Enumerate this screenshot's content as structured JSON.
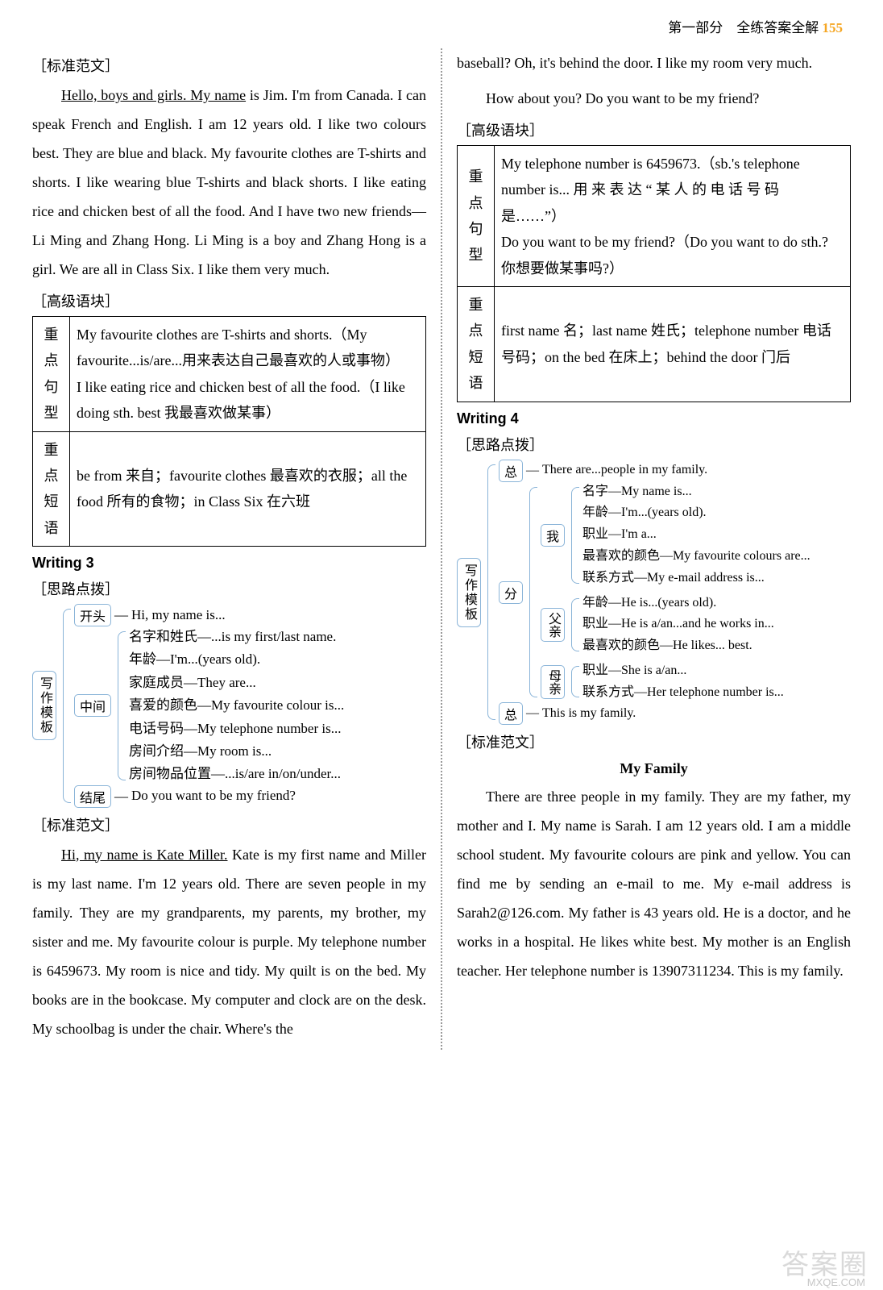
{
  "header": {
    "part": "第一部分　全练答案全解",
    "page": "155"
  },
  "left": {
    "label_model": "［标准范文］",
    "essay1_u": "Hello, boys and girls. My name",
    "essay1_rest": " is Jim. I'm from Canada. I can speak French and English. I am 12 years old. I like two colours best. They are blue and black. My favourite clothes are T-shirts and shorts. I like wearing blue T-shirts and black shorts. I like eating rice and chicken best of all the food. And I have two new friends—Li Ming and Zhang Hong. Li Ming is a boy and Zhang Hong is a girl. We are all in Class Six. I like them very much.",
    "label_adv": "［高级语块］",
    "t1": {
      "r1l": "重点句型",
      "r1c": "My favourite clothes are T-shirts and shorts.（My favourite...is/are...用来表达自己最喜欢的人或事物）\nI like eating rice and chicken best of all the food.（I like doing sth. best 我最喜欢做某事）",
      "r2l": "重点短语",
      "r2c": "be from 来自；favourite clothes 最喜欢的衣服；all the food 所有的食物；in Class Six 在六班"
    },
    "w3": "Writing 3",
    "label_think": "［思路点拨］",
    "tree3": {
      "root": "写作模板",
      "a": "开头",
      "a1": "Hi, my name is...",
      "b": "中间",
      "b1": "名字和姓氏—...is my first/last name.",
      "b2": "年龄—I'm...(years old).",
      "b3": "家庭成员—They are...",
      "b4": "喜爱的颜色—My favourite colour is...",
      "b5": "电话号码—My telephone number is...",
      "b6": "房间介绍—My room is...",
      "b7": "房间物品位置—...is/are in/on/under...",
      "c": "结尾",
      "c1": "Do you want to be my friend?"
    },
    "label_model2": "［标准范文］",
    "essay2_u": "Hi, my name is Kate Miller.",
    "essay2_rest": " Kate is my first name and Miller is my last name. I'm 12 years old. There are seven people in my family. They are my grandparents, my parents, my brother, my sister and me. My favourite colour is purple. My telephone number is 6459673. My room is nice and tidy. My quilt is on the bed. My books are in the bookcase. My computer and clock are on the desk. My schoolbag is under the chair. Where's the"
  },
  "right": {
    "cont": "baseball? Oh, it's behind the door. I like my room very much.",
    "cont2": "How about you? Do you want to be my friend?",
    "label_adv": "［高级语块］",
    "t2": {
      "r1l": "重点句型",
      "r1c": "My telephone number is 6459673.（sb.'s telephone number is... 用 来 表 达 “ 某 人 的 电 话 号 码 是……”）\nDo you want to be my friend?（Do you want to do sth.? 你想要做某事吗?）",
      "r2l": "重点短语",
      "r2c": "first name 名；last name 姓氏；telephone number 电话号码；on the bed 在床上；behind the door 门后"
    },
    "w4": "Writing 4",
    "label_think": "［思路点拨］",
    "tree4": {
      "root": "写作模板",
      "top": "总",
      "top1": "There are...people in my family.",
      "mid": "分",
      "me": "我",
      "me1": "名字—My name is...",
      "me2": "年龄—I'm...(years old).",
      "me3": "职业—I'm a...",
      "me4": "最喜欢的颜色—My favourite colours are...",
      "me5": "联系方式—My e-mail address is...",
      "fa": "父亲",
      "fa1": "年龄—He is...(years old).",
      "fa2": "职业—He is a/an...and he works in...",
      "fa3": "最喜欢的颜色—He likes... best.",
      "mo": "母亲",
      "mo1": "职业—She is a/an...",
      "mo2": "联系方式—Her telephone number is...",
      "bot": "总",
      "bot1": "This is my family."
    },
    "label_model": "［标准范文］",
    "title": "My Family",
    "essay": "There are three people in my family. They are my father, my mother and I. My name is Sarah. I am 12 years old. I am a middle school student. My favourite colours are pink and yellow. You can find me by sending an e-mail to me. My e-mail address is Sarah2@126.com. My father is 43 years old. He is a doctor, and he works in a hospital. He likes white best. My mother is an English teacher. Her telephone number is 13907311234. This is my family."
  },
  "watermark": {
    "main": "答案圈",
    "sub": "MXQE.COM"
  }
}
